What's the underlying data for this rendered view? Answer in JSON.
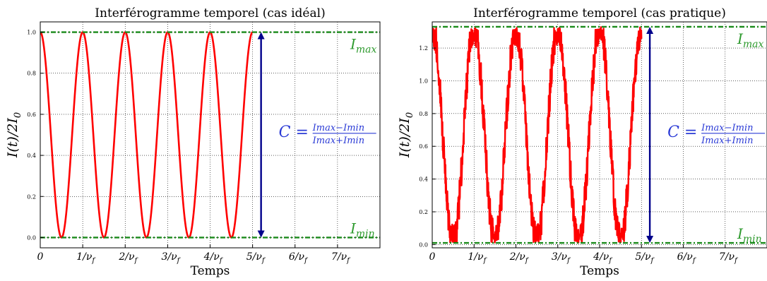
{
  "chart_data": [
    {
      "type": "line",
      "title": "Interférogramme temporel (cas idéal)",
      "xlabel": "Temps",
      "ylabel": "I(t)/2I0",
      "x_ticks": [
        "0",
        "1/νf",
        "2/νf",
        "3/νf",
        "4/νf",
        "5/νf",
        "6/νf",
        "7/νf"
      ],
      "y_ticks": [
        "0.0",
        "0.2",
        "0.4",
        "0.6",
        "0.8",
        "1.0"
      ],
      "xlim": [
        0,
        8
      ],
      "ylim": [
        -0.05,
        1.05
      ],
      "grid": true,
      "series": [
        {
          "kind": "cosine",
          "x_range": [
            0,
            5
          ],
          "periods": 5,
          "min": 0.0,
          "max": 1.0,
          "noise": 0,
          "color": "#ff0000"
        }
      ],
      "hlines": [
        {
          "y": 1.0,
          "color": "#1a8a1a",
          "label": "Imax"
        },
        {
          "y": 0.0,
          "color": "#1a8a1a",
          "label": "Imin"
        }
      ],
      "arrow": {
        "x": 5.2,
        "y_from": 0.0,
        "y_to": 1.0,
        "color": "#00008b"
      },
      "contrast_formula": {
        "lhs": "C =",
        "numerator": "Imax−Imin",
        "denominator": "Imax+Imin"
      }
    },
    {
      "type": "line",
      "title": "Interférogramme temporel (cas pratique)",
      "xlabel": "Temps",
      "ylabel": "I(t)/2I0",
      "x_ticks": [
        "0",
        "1/νf",
        "2/νf",
        "3/νf",
        "4/νf",
        "5/νf",
        "6/νf",
        "7/νf"
      ],
      "y_ticks": [
        "0.0",
        "0.2",
        "0.4",
        "0.6",
        "0.8",
        "1.0",
        "1.2"
      ],
      "xlim": [
        0,
        8
      ],
      "ylim": [
        -0.02,
        1.36
      ],
      "grid": true,
      "series": [
        {
          "kind": "cosine",
          "x_range": [
            0,
            5
          ],
          "periods": 5,
          "min": 0.01,
          "max": 1.33,
          "noise": 0.11,
          "color": "#ff0000"
        }
      ],
      "hlines": [
        {
          "y": 1.33,
          "color": "#1a8a1a",
          "label": "Imax"
        },
        {
          "y": 0.01,
          "color": "#1a8a1a",
          "label": "Imin"
        }
      ],
      "arrow": {
        "x": 5.2,
        "y_from": 0.01,
        "y_to": 1.33,
        "color": "#00008b"
      },
      "contrast_formula": {
        "lhs": "C =",
        "numerator": "Imax−Imin",
        "denominator": "Imax+Imin"
      }
    }
  ]
}
